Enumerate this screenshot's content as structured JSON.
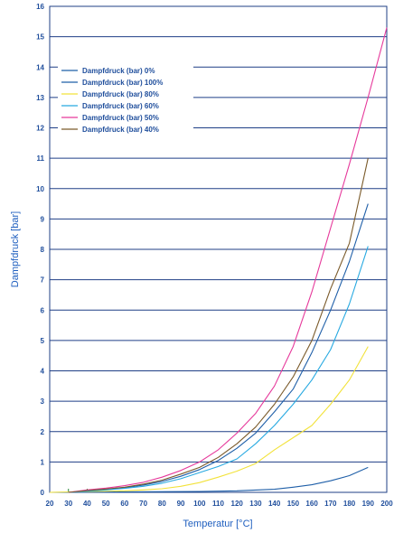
{
  "chart_data": {
    "type": "line",
    "xlabel": "Temperatur [°C]",
    "ylabel": "Dampfdruck [bar]",
    "xlim": [
      20,
      200
    ],
    "ylim": [
      0,
      16
    ],
    "x_ticks": [
      20,
      30,
      40,
      50,
      60,
      70,
      80,
      90,
      100,
      110,
      120,
      130,
      140,
      150,
      160,
      170,
      180,
      190,
      200
    ],
    "y_ticks": [
      0,
      1,
      2,
      3,
      4,
      5,
      6,
      7,
      8,
      9,
      10,
      11,
      12,
      13,
      14,
      15,
      16
    ],
    "grid": "horizontal",
    "legend_position": "top-left",
    "series": [
      {
        "name": "Dampfdruck (bar)    0%",
        "color": "#1f5fa8",
        "x": [
          20,
          100,
          120,
          140,
          150,
          160,
          170,
          180,
          190
        ],
        "y": [
          0,
          0.03,
          0.05,
          0.1,
          0.17,
          0.25,
          0.38,
          0.55,
          0.82
        ]
      },
      {
        "name": "Dampfdruck (bar) 100%",
        "color": "#1f5fa8",
        "x": [
          30,
          40,
          50,
          60,
          70,
          80,
          90,
          100,
          110,
          120,
          130,
          140,
          150,
          160,
          170,
          180,
          190
        ],
        "y": [
          0,
          0.05,
          0.09,
          0.15,
          0.24,
          0.36,
          0.53,
          0.75,
          1.05,
          1.45,
          1.95,
          2.65,
          3.4,
          4.6,
          6.0,
          7.6,
          9.5
        ]
      },
      {
        "name": "Dampfdruck (bar)  80%",
        "color": "#f2e23a",
        "x": [
          20,
          60,
          70,
          80,
          90,
          100,
          110,
          120,
          130,
          140,
          150,
          160,
          170,
          180,
          190
        ],
        "y": [
          0,
          0.05,
          0.08,
          0.12,
          0.2,
          0.32,
          0.5,
          0.7,
          0.95,
          1.4,
          1.8,
          2.2,
          2.9,
          3.7,
          4.8
        ]
      },
      {
        "name": "Dampfdruck (bar)  60%",
        "color": "#27a9e1",
        "x": [
          30,
          40,
          50,
          60,
          70,
          80,
          90,
          100,
          110,
          120,
          130,
          140,
          150,
          160,
          170,
          180,
          190
        ],
        "y": [
          0,
          0.04,
          0.08,
          0.13,
          0.2,
          0.3,
          0.45,
          0.65,
          0.85,
          1.1,
          1.6,
          2.2,
          2.9,
          3.7,
          4.7,
          6.2,
          8.1
        ]
      },
      {
        "name": "Dampfdruck (bar)  50%",
        "color": "#e6399b",
        "x": [
          30,
          40,
          50,
          60,
          70,
          80,
          90,
          100,
          110,
          120,
          130,
          140,
          150,
          160,
          170,
          180,
          190,
          200
        ],
        "y": [
          0,
          0.08,
          0.14,
          0.22,
          0.33,
          0.5,
          0.72,
          1.0,
          1.4,
          1.95,
          2.6,
          3.5,
          4.8,
          6.6,
          8.7,
          10.8,
          13.0,
          15.3
        ]
      },
      {
        "name": "Dampfdruck (bar)  40%",
        "color": "#7a5a2a",
        "x": [
          30,
          40,
          50,
          60,
          70,
          80,
          90,
          100,
          110,
          120,
          130,
          140,
          150,
          160,
          170,
          180,
          190
        ],
        "y": [
          0,
          0.06,
          0.11,
          0.17,
          0.27,
          0.4,
          0.6,
          0.82,
          1.15,
          1.6,
          2.15,
          2.9,
          3.8,
          5.0,
          6.7,
          8.2,
          11.0
        ]
      }
    ]
  }
}
